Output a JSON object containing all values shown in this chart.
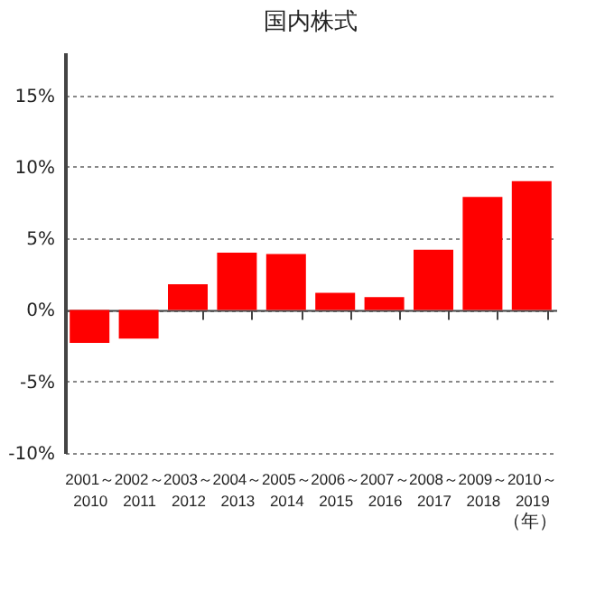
{
  "chart_data": {
    "type": "bar",
    "title": "国内株式",
    "xlabel": "（年）",
    "categories": [
      "2001～\n2010",
      "2002～\n2011",
      "2003～\n2012",
      "2004～\n2013",
      "2005～\n2014",
      "2006～\n2015",
      "2007～\n2016",
      "2008～\n2017",
      "2009～\n2018",
      "2010～\n2019"
    ],
    "values": [
      -2.3,
      -2.0,
      1.8,
      4.0,
      3.9,
      1.2,
      0.9,
      4.2,
      7.9,
      9.0
    ],
    "color": "#ff0000",
    "ylim": [
      -10,
      18
    ],
    "yticks": [
      {
        "value": -10,
        "label": "-10%"
      },
      {
        "value": -5,
        "label": "-5%"
      },
      {
        "value": 0,
        "label": "0%"
      },
      {
        "value": 5,
        "label": "5%"
      },
      {
        "value": 10,
        "label": "10%"
      },
      {
        "value": 15,
        "label": "15%"
      }
    ],
    "grid": "y"
  }
}
